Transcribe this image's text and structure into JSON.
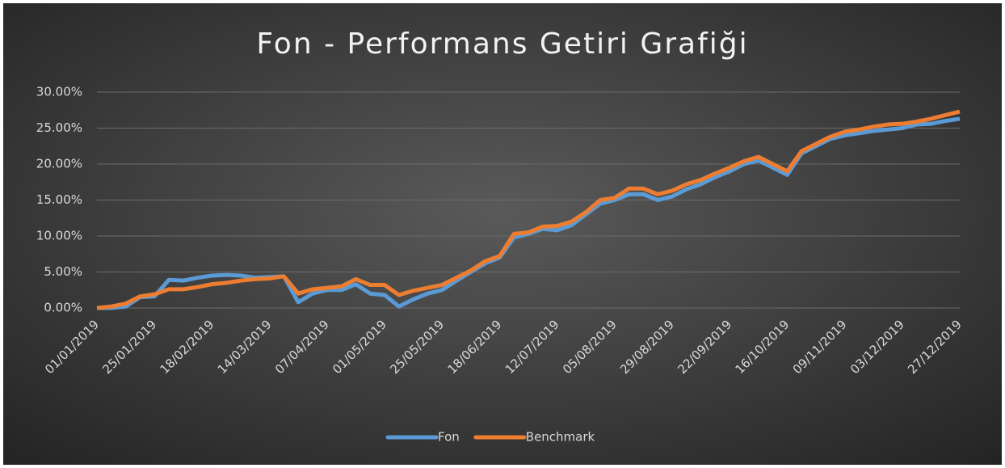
{
  "chart_data": {
    "type": "line",
    "title": "Fon - Performans Getiri Grafiği",
    "categories": [
      "01/01/2019",
      null,
      null,
      null,
      "25/01/2019",
      null,
      null,
      null,
      "18/02/2019",
      null,
      null,
      null,
      "14/03/2019",
      null,
      null,
      null,
      "07/04/2019",
      null,
      null,
      null,
      "01/05/2019",
      null,
      null,
      null,
      "25/05/2019",
      null,
      null,
      null,
      "18/06/2019",
      null,
      null,
      null,
      "12/07/2019",
      null,
      null,
      null,
      "05/08/2019",
      null,
      null,
      null,
      "29/08/2019",
      null,
      null,
      null,
      "22/09/2019",
      null,
      null,
      null,
      "16/10/2019",
      null,
      null,
      null,
      "09/11/2019",
      null,
      null,
      null,
      "03/12/2019",
      null,
      null,
      null,
      "27/12/2019"
    ],
    "series": [
      {
        "name": "Fon",
        "color": "#5b9bd5",
        "values": [
          0,
          0,
          0.2,
          1.5,
          1.6,
          3.9,
          3.8,
          4.2,
          4.5,
          4.6,
          4.5,
          4.2,
          4.3,
          4.4,
          0.8,
          2.0,
          2.5,
          2.5,
          3.3,
          2.0,
          1.8,
          0.2,
          1.2,
          2.0,
          2.5,
          3.8,
          5.0,
          6.2,
          7.0,
          9.8,
          10.3,
          11.0,
          10.8,
          11.5,
          13.0,
          14.5,
          15.0,
          15.8,
          15.8,
          15.0,
          15.5,
          16.5,
          17.2,
          18.2,
          19.0,
          20.0,
          20.5,
          19.5,
          18.5,
          21.5,
          22.5,
          23.5,
          24.0,
          24.3,
          24.6,
          24.8,
          25.0,
          25.5,
          25.6,
          26.0,
          26.3
        ]
      },
      {
        "name": "Benchmark",
        "color": "#ed7d31",
        "values": [
          0,
          0.2,
          0.6,
          1.6,
          1.9,
          2.6,
          2.6,
          2.9,
          3.3,
          3.5,
          3.8,
          4.0,
          4.1,
          4.4,
          2.0,
          2.6,
          2.8,
          3.0,
          4.0,
          3.2,
          3.2,
          1.8,
          2.4,
          2.8,
          3.2,
          4.2,
          5.2,
          6.5,
          7.2,
          10.3,
          10.5,
          11.3,
          11.4,
          12.0,
          13.3,
          15.0,
          15.3,
          16.6,
          16.6,
          15.8,
          16.3,
          17.2,
          17.8,
          18.7,
          19.5,
          20.4,
          21.0,
          20.0,
          19.0,
          21.8,
          22.8,
          23.8,
          24.5,
          24.8,
          25.2,
          25.5,
          25.6,
          25.9,
          26.3,
          26.8,
          27.3
        ]
      }
    ],
    "ylim": [
      0,
      30
    ],
    "yticks": [
      {
        "value": 0,
        "label": "0.00%"
      },
      {
        "value": 5,
        "label": "5.00%"
      },
      {
        "value": 10,
        "label": "10.00%"
      },
      {
        "value": 15,
        "label": "15.00%"
      },
      {
        "value": 20,
        "label": "20.00%"
      },
      {
        "value": 25,
        "label": "25.00%"
      },
      {
        "value": 30,
        "label": "30.00%"
      }
    ],
    "grid": true,
    "legend": "bottom"
  }
}
